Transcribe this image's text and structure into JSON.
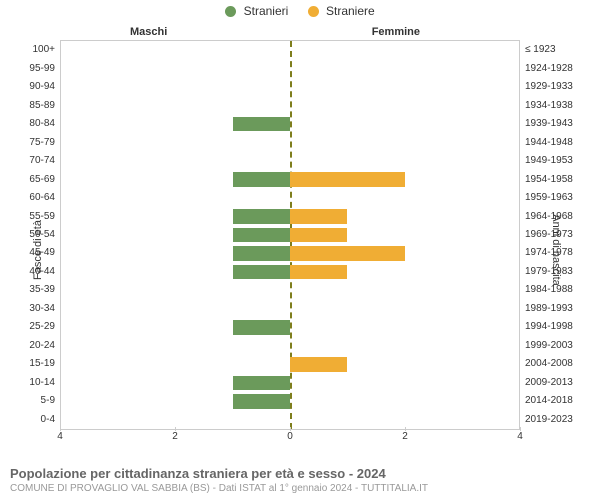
{
  "legend": {
    "male": {
      "label": "Stranieri",
      "color": "#6b9a5b"
    },
    "female": {
      "label": "Straniere",
      "color": "#f0ad34"
    }
  },
  "headers": {
    "male": "Maschi",
    "female": "Femmine"
  },
  "y_title_left": "Fasce di età",
  "y_title_right": "Anni di nascita",
  "xaxis": {
    "max": 4,
    "ticks_left": [
      4,
      2,
      0
    ],
    "ticks_right": [
      0,
      2,
      4
    ]
  },
  "colors": {
    "male_bar": "#6b9a5b",
    "female_bar": "#f0ad34",
    "divider": "#7e7e1c",
    "grid": "#cccccc",
    "background": "#ffffff",
    "text": "#333333"
  },
  "font": {
    "family": "Arial, Helvetica, sans-serif",
    "base_size": 11
  },
  "rows": [
    {
      "age": "100+",
      "birth": "≤ 1923",
      "m": 0,
      "f": 0
    },
    {
      "age": "95-99",
      "birth": "1924-1928",
      "m": 0,
      "f": 0
    },
    {
      "age": "90-94",
      "birth": "1929-1933",
      "m": 0,
      "f": 0
    },
    {
      "age": "85-89",
      "birth": "1934-1938",
      "m": 0,
      "f": 0
    },
    {
      "age": "80-84",
      "birth": "1939-1943",
      "m": 1,
      "f": 0
    },
    {
      "age": "75-79",
      "birth": "1944-1948",
      "m": 0,
      "f": 0
    },
    {
      "age": "70-74",
      "birth": "1949-1953",
      "m": 0,
      "f": 0
    },
    {
      "age": "65-69",
      "birth": "1954-1958",
      "m": 1,
      "f": 2
    },
    {
      "age": "60-64",
      "birth": "1959-1963",
      "m": 0,
      "f": 0
    },
    {
      "age": "55-59",
      "birth": "1964-1968",
      "m": 1,
      "f": 1
    },
    {
      "age": "50-54",
      "birth": "1969-1973",
      "m": 1,
      "f": 1
    },
    {
      "age": "45-49",
      "birth": "1974-1978",
      "m": 1,
      "f": 2
    },
    {
      "age": "40-44",
      "birth": "1979-1983",
      "m": 1,
      "f": 1
    },
    {
      "age": "35-39",
      "birth": "1984-1988",
      "m": 0,
      "f": 0
    },
    {
      "age": "30-34",
      "birth": "1989-1993",
      "m": 0,
      "f": 0
    },
    {
      "age": "25-29",
      "birth": "1994-1998",
      "m": 1,
      "f": 0
    },
    {
      "age": "20-24",
      "birth": "1999-2003",
      "m": 0,
      "f": 0
    },
    {
      "age": "15-19",
      "birth": "2004-2008",
      "m": 0,
      "f": 1
    },
    {
      "age": "10-14",
      "birth": "2009-2013",
      "m": 1,
      "f": 0
    },
    {
      "age": "5-9",
      "birth": "2014-2018",
      "m": 1,
      "f": 0
    },
    {
      "age": "0-4",
      "birth": "2019-2023",
      "m": 0,
      "f": 0
    }
  ],
  "footer": {
    "title": "Popolazione per cittadinanza straniera per età e sesso - 2024",
    "subtitle": "COMUNE DI PROVAGLIO VAL SABBIA (BS) - Dati ISTAT al 1° gennaio 2024 - TUTTITALIA.IT"
  }
}
